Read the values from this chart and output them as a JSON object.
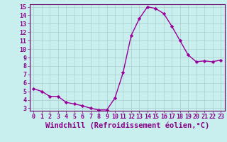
{
  "x": [
    0,
    1,
    2,
    3,
    4,
    5,
    6,
    7,
    8,
    9,
    10,
    11,
    12,
    13,
    14,
    15,
    16,
    17,
    18,
    19,
    20,
    21,
    22,
    23
  ],
  "y": [
    5.3,
    5.0,
    4.4,
    4.4,
    3.7,
    3.5,
    3.3,
    3.0,
    2.8,
    2.8,
    4.2,
    7.2,
    11.6,
    13.6,
    15.0,
    14.8,
    14.2,
    12.7,
    11.0,
    9.3,
    8.5,
    8.6,
    8.5,
    8.7
  ],
  "line_color": "#990099",
  "marker": "D",
  "marker_size": 2.2,
  "line_width": 1.0,
  "xlabel": "Windchill (Refroidissement éolien,°C)",
  "xlabel_fontsize": 7.5,
  "ylim_min": 3,
  "ylim_max": 15,
  "xlim_min": 0,
  "xlim_max": 23,
  "yticks": [
    3,
    4,
    5,
    6,
    7,
    8,
    9,
    10,
    11,
    12,
    13,
    14,
    15
  ],
  "xticks": [
    0,
    1,
    2,
    3,
    4,
    5,
    6,
    7,
    8,
    9,
    10,
    11,
    12,
    13,
    14,
    15,
    16,
    17,
    18,
    19,
    20,
    21,
    22,
    23
  ],
  "tick_fontsize": 6.0,
  "grid_color": "#aacccc",
  "bg_color": "#c8eeee",
  "axes_color": "#880088",
  "fig_bg": "#c8eeee",
  "spine_color": "#660066"
}
